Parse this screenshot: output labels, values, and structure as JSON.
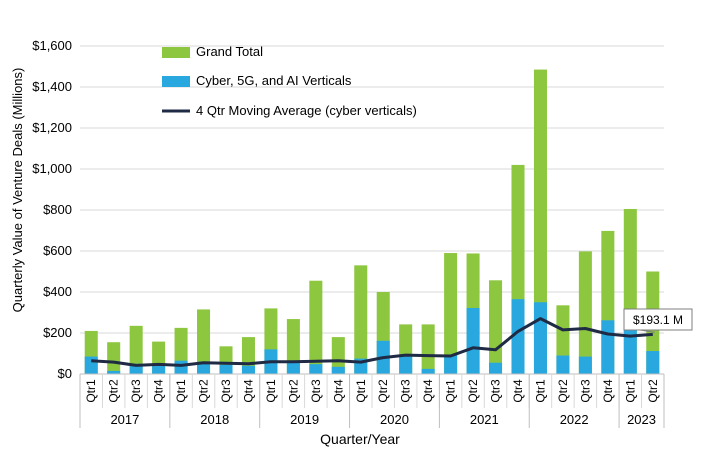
{
  "chart_data": {
    "type": "bar",
    "subtype": "overlapping-bars-with-line",
    "title": "",
    "xlabel": "Quarter/Year",
    "ylabel": "Quarterly Value of Venture Deals (Millions)",
    "ylim": [
      0,
      1600
    ],
    "yticks": [
      0,
      200,
      400,
      600,
      800,
      1000,
      1200,
      1400,
      1600
    ],
    "ytick_labels": [
      "$0",
      "$200",
      "$400",
      "$600",
      "$800",
      "$1,000",
      "$1,200",
      "$1,400",
      "$1,600"
    ],
    "grid": true,
    "legend_position": "top-center",
    "years": [
      {
        "label": "2017",
        "quarters": 4
      },
      {
        "label": "2018",
        "quarters": 4
      },
      {
        "label": "2019",
        "quarters": 4
      },
      {
        "label": "2020",
        "quarters": 4
      },
      {
        "label": "2021",
        "quarters": 4
      },
      {
        "label": "2022",
        "quarters": 4
      },
      {
        "label": "2023",
        "quarters": 2
      }
    ],
    "categories": [
      "Qtr1",
      "Qtr2",
      "Qtr3",
      "Qtr4",
      "Qtr1",
      "Qtr2",
      "Qtr3",
      "Qtr4",
      "Qtr1",
      "Qtr2",
      "Qtr3",
      "Qtr4",
      "Qtr1",
      "Qtr2",
      "Qtr3",
      "Qtr4",
      "Qtr1",
      "Qtr2",
      "Qtr3",
      "Qtr4",
      "Qtr1",
      "Qtr2",
      "Qtr3",
      "Qtr4",
      "Qtr1",
      "Qtr2"
    ],
    "series": [
      {
        "name": "Grand Total",
        "color": "#8dc63f",
        "kind": "bar",
        "values": [
          210,
          155,
          235,
          158,
          225,
          315,
          135,
          180,
          320,
          268,
          455,
          180,
          530,
          400,
          242,
          242,
          590,
          588,
          457,
          1020,
          1485,
          335,
          598,
          698,
          805,
          500
        ]
      },
      {
        "name": "Cyber, 5G, and AI Verticals",
        "color": "#29a8e0",
        "kind": "bar",
        "values": [
          85,
          15,
          50,
          45,
          65,
          60,
          45,
          40,
          120,
          58,
          48,
          35,
          75,
          162,
          85,
          25,
          95,
          322,
          55,
          365,
          350,
          90,
          85,
          262,
          240,
          112
        ]
      },
      {
        "name": "4 Qtr Moving Average (cyber verticals)",
        "color": "#1f2a44",
        "kind": "line",
        "values": [
          65,
          58,
          42,
          47,
          42,
          55,
          52,
          50,
          60,
          60,
          62,
          65,
          58,
          80,
          92,
          90,
          88,
          128,
          118,
          208,
          270,
          215,
          222,
          195,
          185,
          193.1
        ]
      }
    ],
    "annotations": [
      {
        "text": "$193.1 M",
        "series": "4 Qtr Moving Average (cyber verticals)",
        "index": 25
      }
    ]
  }
}
